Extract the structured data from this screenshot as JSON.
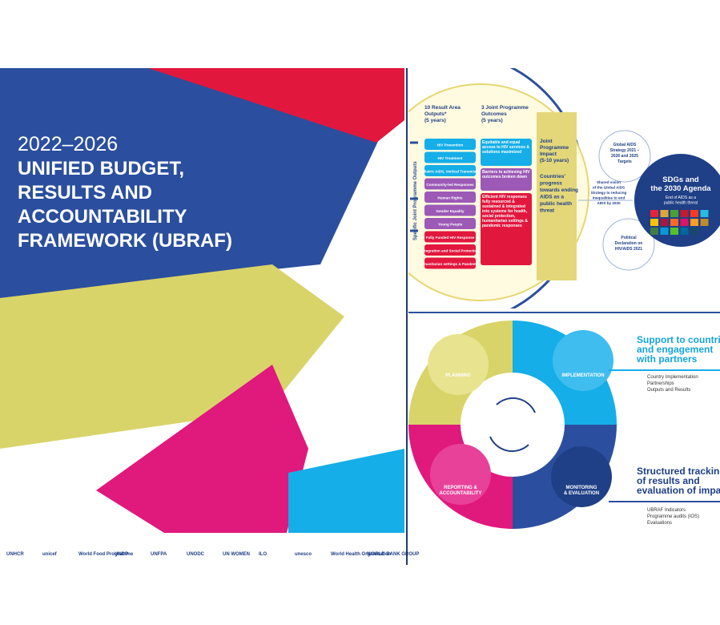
{
  "cover": {
    "years": "2022–2026",
    "title": [
      "UNIFIED BUDGET,",
      "RESULTS AND",
      "ACCOUNTABILITY",
      "FRAMEWORK (UBRAF)"
    ],
    "logos": [
      "UNHCR",
      "unicef",
      "World Food Programme",
      "UNDP",
      "UNFPA",
      "UNODC",
      "UN WOMEN",
      "ILO",
      "unesco",
      "World Health Organization",
      "WORLD BANK GROUP"
    ]
  },
  "results_diagram": {
    "side_label": "Specific Joint Programme Outputs",
    "outputs": {
      "header": [
        "10 Result Area",
        "Outputs*",
        "(5 years)"
      ],
      "items": [
        "HIV Prevention",
        "HIV Treatment",
        "Paediatric AIDS, Vertical Transmission",
        "Community-led Responses",
        "Human Rights",
        "Gender Equality",
        "Young People",
        "Fully Funded HIV Response",
        "Integration and Social Protection",
        "Humanitarian settings & Pandemics"
      ]
    },
    "outcomes": {
      "header": [
        "3 Joint Programme",
        "Outcomes",
        "(5 years)"
      ],
      "items": [
        "Equitable and equal access to HIV services & solutions maximized",
        "Barriers to achieving HIV outcomes broken down",
        "Efficient HIV responses fully resourced & sustained & integrated into systems for health, social protection, humanitarian settings & pandemic responses"
      ]
    },
    "impact": {
      "header": [
        "Joint",
        "Programme",
        "Impact",
        "(5-10 years)"
      ],
      "text": [
        "Countries'",
        "progress",
        "towards ending",
        "AIDS as a",
        "public health",
        "threat"
      ]
    },
    "strategy": [
      "Global AIDS",
      "Strategy 2021 –",
      "2026 and 2025",
      "Targets"
    ],
    "shared_vision": [
      "Shared vision",
      "of the Global AIDS",
      "Strategy to reducing",
      "inequalities to end",
      "AIDS by 2030"
    ],
    "declaration": [
      "Political",
      "Declaration on",
      "HIV/AIDS 2021"
    ],
    "sdg_title": [
      "SDGs and",
      "the 2030 Agenda"
    ],
    "sdg_text": [
      "End of AIDS as a",
      "public health threat"
    ]
  },
  "cycle": {
    "planning": "PLANNING",
    "implementation": "IMPLEMENTATION",
    "monitoring": [
      "MONITORING",
      "& EVALUATION"
    ],
    "reporting": [
      "REPORTING &",
      "ACCOUNTABILITY"
    ],
    "support_heading": [
      "Support to countri",
      "and engagement",
      "with partners"
    ],
    "support_items": [
      "Country Implementation",
      "Partnerships",
      "Outputs and Results"
    ],
    "tracking_heading": [
      "Structured tracking",
      "of results and",
      "evaluation of impa"
    ],
    "tracking_items": [
      "UBRAF Indicators",
      "Programme audits (IOS)",
      "Evaluations"
    ]
  }
}
